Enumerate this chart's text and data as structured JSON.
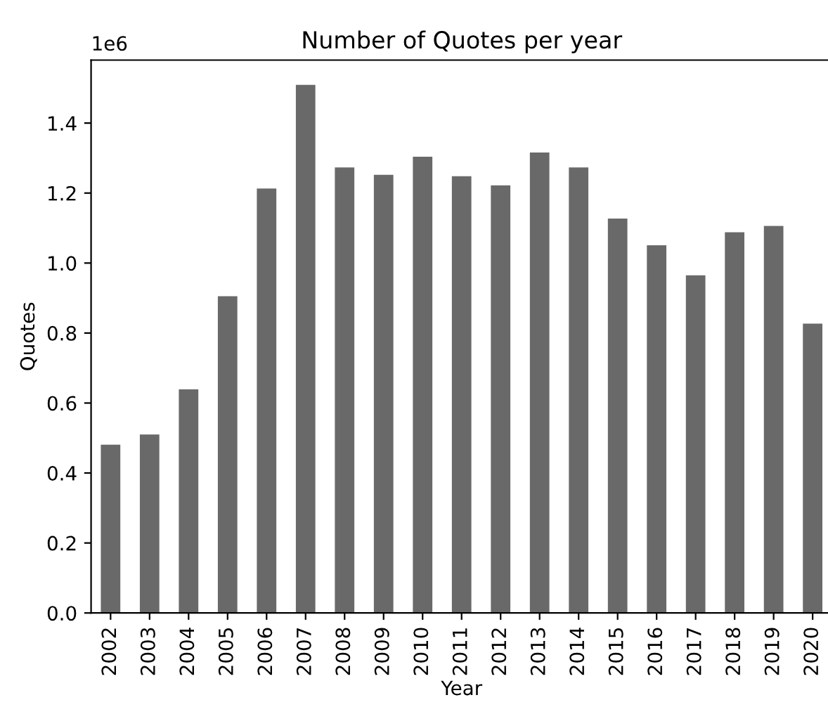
{
  "chart_data": {
    "type": "bar",
    "title": "Number of Quotes per year",
    "xlabel": "Year",
    "ylabel": "Quotes",
    "categories": [
      "2002",
      "2003",
      "2004",
      "2005",
      "2006",
      "2007",
      "2008",
      "2009",
      "2010",
      "2011",
      "2012",
      "2013",
      "2014",
      "2015",
      "2016",
      "2017",
      "2018",
      "2019",
      "2020"
    ],
    "values": [
      0.481,
      0.51,
      0.639,
      0.905,
      1.213,
      1.509,
      1.273,
      1.252,
      1.304,
      1.248,
      1.222,
      1.316,
      1.273,
      1.127,
      1.051,
      0.965,
      1.088,
      1.106,
      0.827
    ],
    "color": "#696969",
    "ylim": [
      0,
      1.58
    ],
    "yticks": [
      {
        "value": 0,
        "label": "0.0"
      },
      0.2,
      0.4,
      0.6,
      0.8,
      {
        "value": 1,
        "label": "1.0"
      },
      1.2,
      1.4
    ],
    "annotations": [
      "1e6"
    ]
  }
}
